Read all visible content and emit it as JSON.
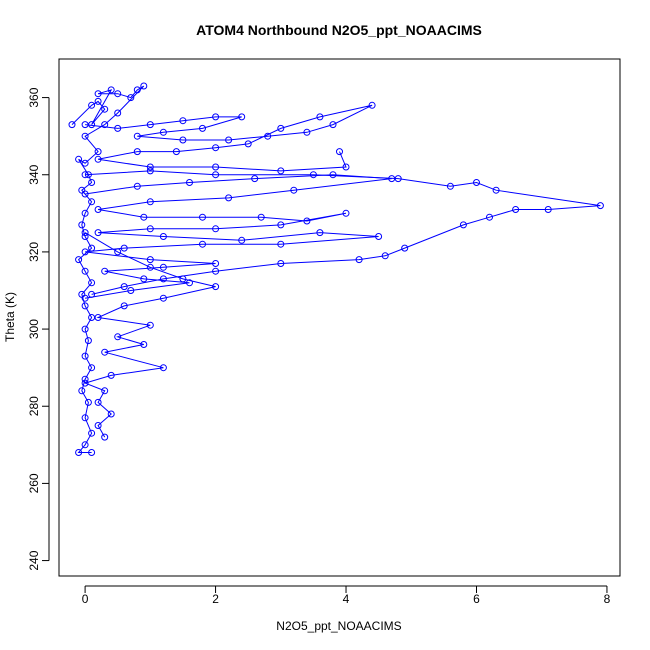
{
  "chart_data": {
    "type": "line",
    "title": "ATOM4 Northbound N2O5_ppt_NOAACIMS",
    "xlabel": "N2O5_ppt_NOAACIMS",
    "ylabel": "Theta (K)",
    "xlim": [
      -0.4,
      8.2
    ],
    "ylim": [
      236,
      370
    ],
    "x_ticks": [
      0,
      2,
      4,
      6,
      8
    ],
    "y_ticks": [
      240,
      260,
      280,
      300,
      320,
      340,
      360
    ],
    "grid": false,
    "legend": "none",
    "series_color": "#0000ff",
    "marker": "open-circle",
    "series": [
      {
        "points": [
          [
            -0.2,
            353
          ],
          [
            0.1,
            358
          ],
          [
            0.2,
            359
          ],
          [
            0.3,
            357
          ],
          [
            0.1,
            353
          ],
          [
            0.4,
            362
          ],
          [
            0.2,
            361
          ],
          [
            0.5,
            361
          ],
          [
            0.7,
            360
          ],
          [
            0.8,
            362
          ],
          [
            0.9,
            363
          ],
          [
            0.5,
            356
          ],
          [
            0.3,
            353
          ],
          [
            0.0,
            350
          ],
          [
            0.2,
            346
          ],
          [
            0.0,
            343
          ],
          [
            -0.1,
            344
          ],
          [
            0.05,
            340
          ],
          [
            0.1,
            338
          ],
          [
            -0.05,
            336
          ],
          [
            0.1,
            333
          ],
          [
            0.0,
            330
          ],
          [
            -0.05,
            327
          ],
          [
            0.0,
            324
          ],
          [
            0.1,
            321
          ],
          [
            -0.1,
            318
          ],
          [
            0.0,
            315
          ],
          [
            0.1,
            312
          ],
          [
            -0.05,
            309
          ],
          [
            0.0,
            306
          ],
          [
            0.1,
            303
          ],
          [
            0.0,
            300
          ],
          [
            0.05,
            297
          ],
          [
            0.0,
            293
          ],
          [
            0.1,
            290
          ],
          [
            0.0,
            287
          ],
          [
            -0.05,
            284
          ],
          [
            0.05,
            281
          ],
          [
            0.0,
            277
          ],
          [
            0.1,
            273
          ],
          [
            0.0,
            270
          ],
          [
            -0.1,
            268
          ],
          [
            0.1,
            268
          ]
        ]
      },
      {
        "points": [
          [
            0.0,
            340
          ],
          [
            1.0,
            341
          ],
          [
            2.0,
            340
          ],
          [
            3.5,
            340
          ],
          [
            4.8,
            339
          ],
          [
            5.6,
            337
          ],
          [
            6.0,
            338
          ],
          [
            6.3,
            336
          ],
          [
            7.9,
            332
          ],
          [
            7.1,
            331
          ],
          [
            6.6,
            331
          ],
          [
            6.2,
            329
          ],
          [
            5.8,
            327
          ],
          [
            4.9,
            321
          ],
          [
            4.6,
            319
          ],
          [
            4.2,
            318
          ],
          [
            3.0,
            317
          ],
          [
            2.0,
            315
          ],
          [
            1.2,
            313
          ],
          [
            0.6,
            311
          ],
          [
            0.1,
            309
          ]
        ]
      },
      {
        "points": [
          [
            0.0,
            335
          ],
          [
            0.8,
            337
          ],
          [
            1.6,
            338
          ],
          [
            2.6,
            339
          ],
          [
            3.8,
            340
          ],
          [
            4.7,
            339
          ],
          [
            3.2,
            336
          ],
          [
            2.2,
            334
          ],
          [
            1.0,
            333
          ],
          [
            0.2,
            331
          ],
          [
            0.9,
            329
          ],
          [
            1.8,
            329
          ],
          [
            2.7,
            329
          ],
          [
            3.4,
            328
          ],
          [
            4.0,
            330
          ],
          [
            3.0,
            327
          ],
          [
            2.0,
            326
          ],
          [
            1.0,
            326
          ],
          [
            0.2,
            325
          ],
          [
            1.2,
            324
          ],
          [
            2.4,
            323
          ],
          [
            3.6,
            325
          ],
          [
            4.5,
            324
          ],
          [
            3.0,
            322
          ],
          [
            1.8,
            322
          ],
          [
            0.6,
            321
          ],
          [
            0.0,
            320
          ],
          [
            1.0,
            318
          ],
          [
            2.0,
            317
          ],
          [
            1.2,
            316
          ],
          [
            0.3,
            315
          ],
          [
            0.9,
            313
          ],
          [
            1.6,
            312
          ],
          [
            0.7,
            310
          ],
          [
            0.0,
            308
          ]
        ]
      },
      {
        "points": [
          [
            0.0,
            325
          ],
          [
            0.5,
            320
          ],
          [
            1.0,
            316
          ],
          [
            1.5,
            313
          ],
          [
            2.0,
            311
          ],
          [
            1.2,
            308
          ],
          [
            0.6,
            306
          ],
          [
            0.2,
            303
          ],
          [
            1.0,
            301
          ],
          [
            0.5,
            298
          ],
          [
            0.9,
            296
          ],
          [
            0.3,
            294
          ],
          [
            1.2,
            290
          ],
          [
            0.4,
            288
          ],
          [
            0.0,
            286
          ],
          [
            0.3,
            284
          ],
          [
            0.2,
            281
          ],
          [
            0.4,
            278
          ],
          [
            0.2,
            275
          ],
          [
            0.3,
            272
          ]
        ]
      },
      {
        "points": [
          [
            0.0,
            353
          ],
          [
            0.5,
            352
          ],
          [
            1.0,
            353
          ],
          [
            1.5,
            354
          ],
          [
            2.0,
            355
          ],
          [
            2.4,
            355
          ],
          [
            1.8,
            352
          ],
          [
            1.2,
            351
          ],
          [
            0.8,
            350
          ],
          [
            1.5,
            349
          ],
          [
            2.2,
            349
          ],
          [
            2.8,
            350
          ],
          [
            3.4,
            351
          ],
          [
            3.8,
            353
          ],
          [
            4.4,
            358
          ],
          [
            3.6,
            355
          ],
          [
            3.0,
            352
          ],
          [
            2.5,
            348
          ],
          [
            2.0,
            347
          ],
          [
            1.4,
            346
          ],
          [
            0.8,
            346
          ],
          [
            0.2,
            344
          ],
          [
            1.0,
            342
          ],
          [
            2.0,
            342
          ],
          [
            3.0,
            341
          ],
          [
            4.0,
            342
          ],
          [
            3.9,
            346
          ]
        ]
      }
    ]
  }
}
